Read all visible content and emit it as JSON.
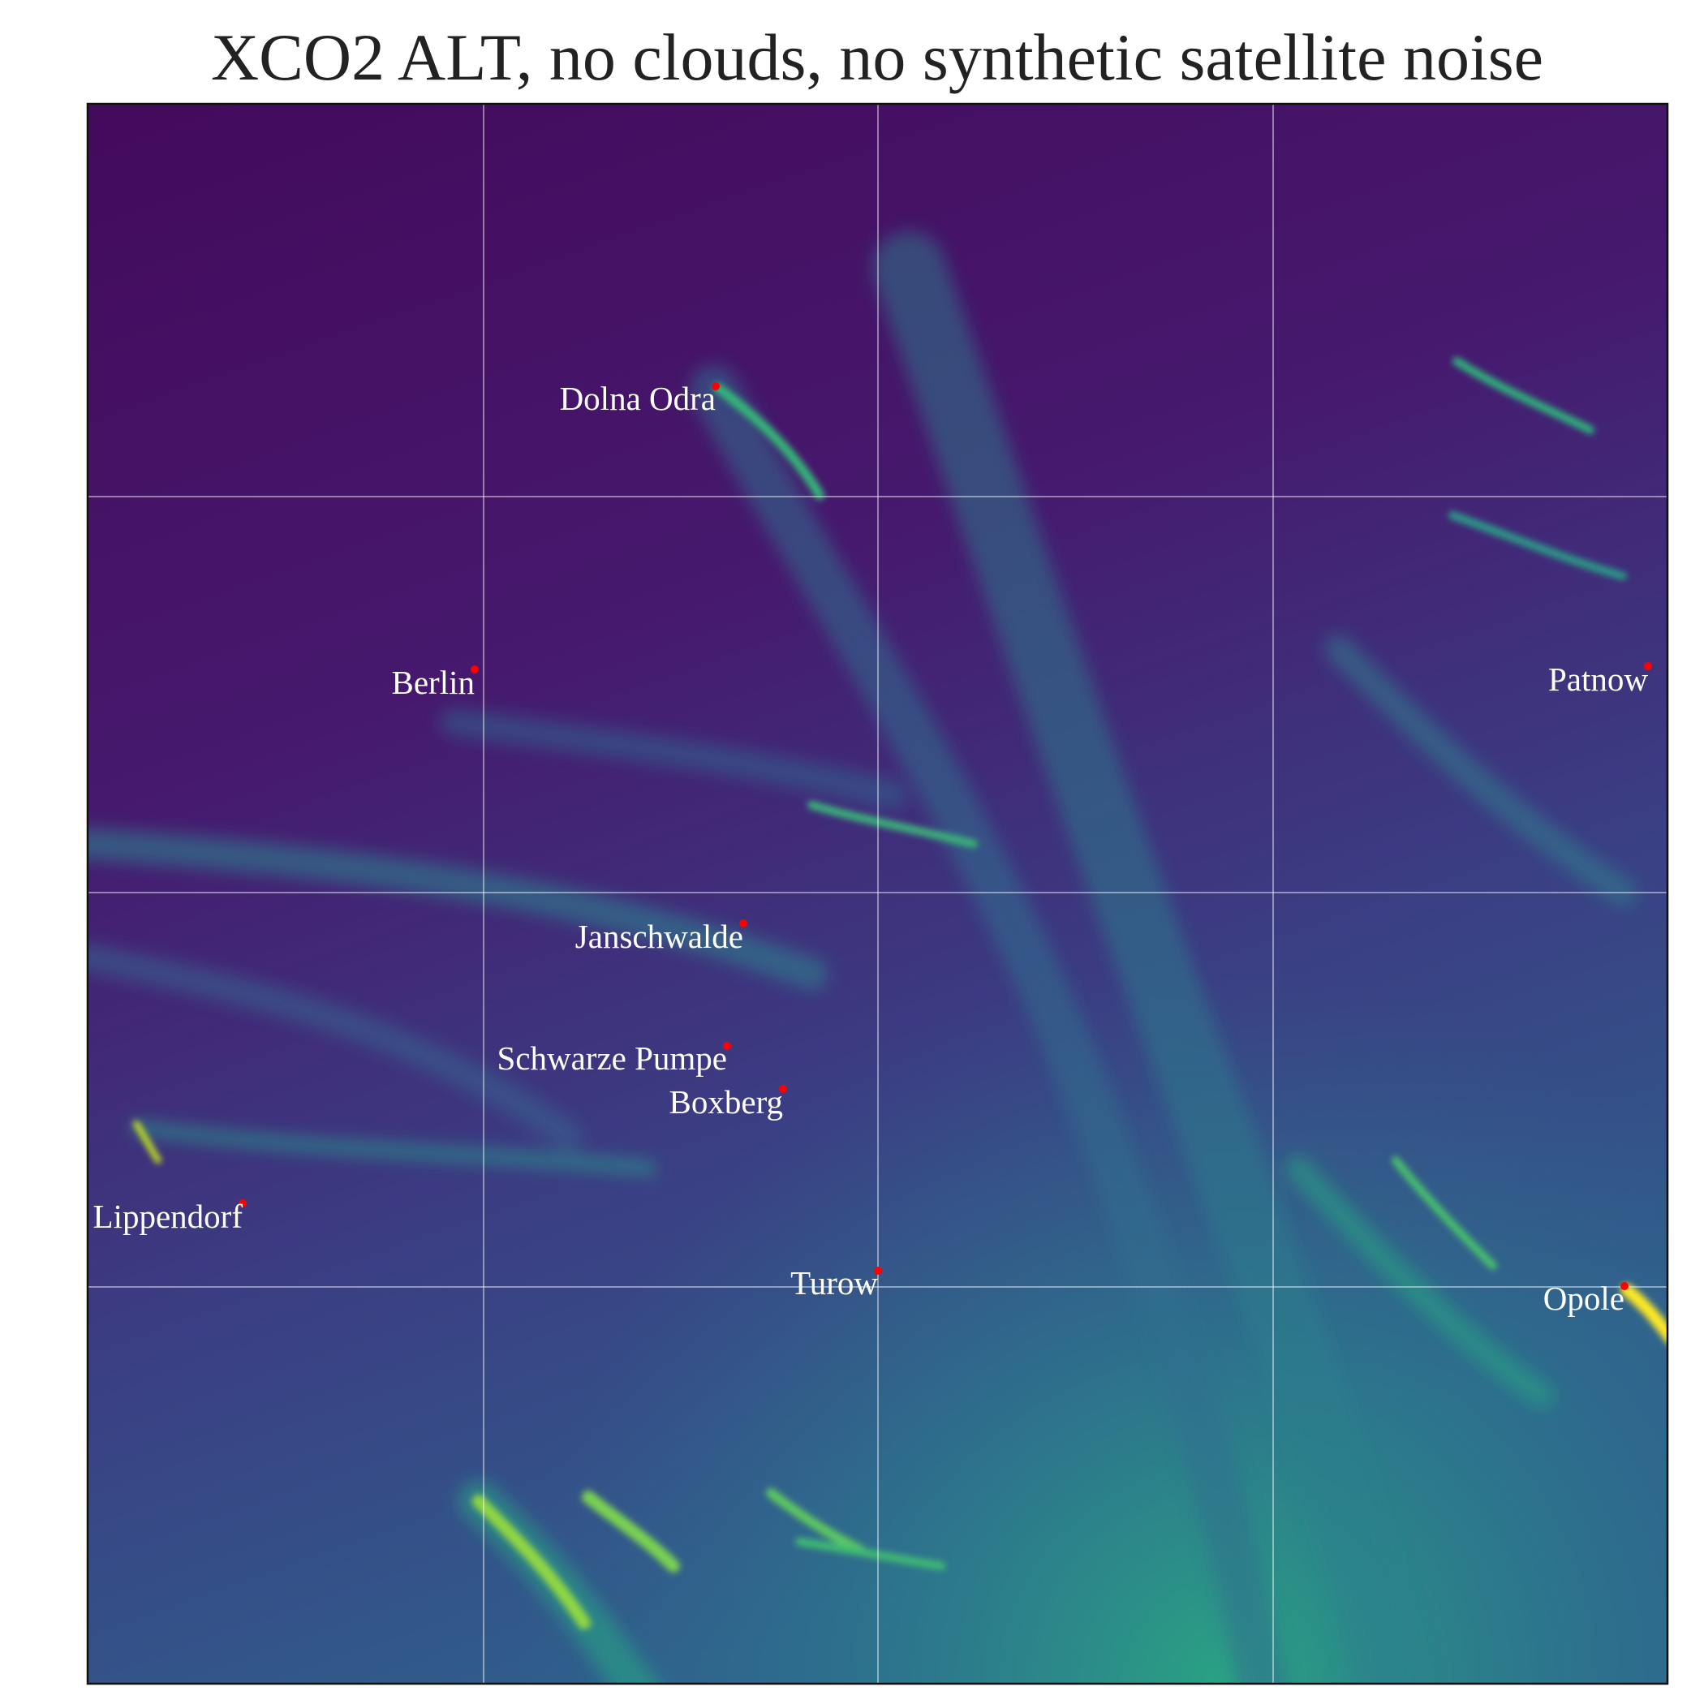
{
  "title": "XCO2 ALT, no clouds, no synthetic satellite noise",
  "sites": [
    {
      "label": "Dolna Odra"
    },
    {
      "label": "Berlin"
    },
    {
      "label": "Patnow"
    },
    {
      "label": "Janschwalde"
    },
    {
      "label": "Schwarze Pumpe"
    },
    {
      "label": "Boxberg"
    },
    {
      "label": "Lippendorf"
    },
    {
      "label": "Turow"
    },
    {
      "label": "Opole"
    }
  ]
}
